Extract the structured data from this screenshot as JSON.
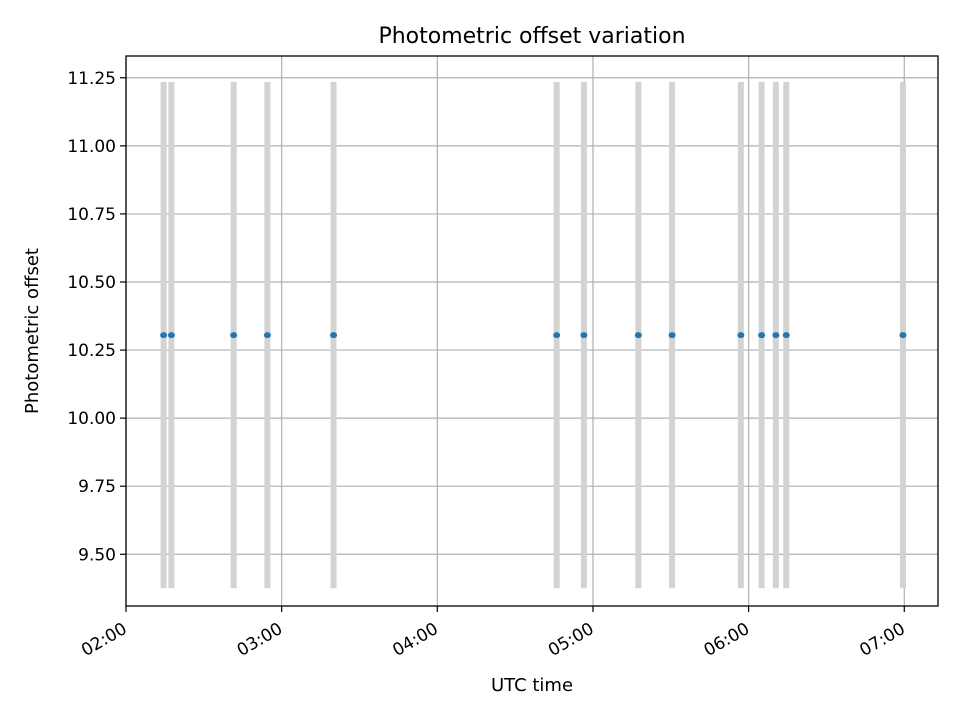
{
  "chart_data": {
    "type": "scatter",
    "title": "Photometric offset variation",
    "xlabel": "UTC time",
    "ylabel": "Photometric offset",
    "x_ticks": [
      "02:00",
      "03:00",
      "04:00",
      "05:00",
      "06:00",
      "07:00"
    ],
    "xlim": [
      "02:00",
      "07:13"
    ],
    "y_ticks": [
      9.5,
      9.75,
      10.0,
      10.25,
      10.5,
      10.75,
      11.0,
      11.25
    ],
    "y_tick_labels": [
      "9.50",
      "9.75",
      "10.00",
      "10.25",
      "10.50",
      "10.75",
      "11.00",
      "11.25"
    ],
    "ylim": [
      9.31,
      11.33
    ],
    "grid": true,
    "points": [
      {
        "x": "02:14:30",
        "y": 10.305
      },
      {
        "x": "02:17:30",
        "y": 10.305
      },
      {
        "x": "02:41:30",
        "y": 10.305
      },
      {
        "x": "02:54:30",
        "y": 10.305
      },
      {
        "x": "03:20:00",
        "y": 10.305
      },
      {
        "x": "04:46:00",
        "y": 10.305
      },
      {
        "x": "04:56:30",
        "y": 10.305
      },
      {
        "x": "05:17:30",
        "y": 10.305
      },
      {
        "x": "05:30:30",
        "y": 10.305
      },
      {
        "x": "05:57:00",
        "y": 10.305
      },
      {
        "x": "06:05:00",
        "y": 10.305
      },
      {
        "x": "06:10:30",
        "y": 10.305
      },
      {
        "x": "06:14:30",
        "y": 10.305
      },
      {
        "x": "06:59:30",
        "y": 10.305
      }
    ],
    "vertical_bands": [
      {
        "x": "02:14:30",
        "y_range": [
          9.375,
          11.235
        ]
      },
      {
        "x": "02:17:30",
        "y_range": [
          9.375,
          11.235
        ]
      },
      {
        "x": "02:41:30",
        "y_range": [
          9.375,
          11.235
        ]
      },
      {
        "x": "02:54:30",
        "y_range": [
          9.375,
          11.235
        ]
      },
      {
        "x": "03:20:00",
        "y_range": [
          9.375,
          11.235
        ]
      },
      {
        "x": "04:46:00",
        "y_range": [
          9.375,
          11.235
        ]
      },
      {
        "x": "04:56:30",
        "y_range": [
          9.375,
          11.235
        ]
      },
      {
        "x": "05:17:30",
        "y_range": [
          9.375,
          11.235
        ]
      },
      {
        "x": "05:30:30",
        "y_range": [
          9.375,
          11.235
        ]
      },
      {
        "x": "05:57:00",
        "y_range": [
          9.375,
          11.235
        ]
      },
      {
        "x": "06:05:00",
        "y_range": [
          9.375,
          11.235
        ]
      },
      {
        "x": "06:10:30",
        "y_range": [
          9.375,
          11.235
        ]
      },
      {
        "x": "06:14:30",
        "y_range": [
          9.375,
          11.235
        ]
      },
      {
        "x": "06:59:30",
        "y_range": [
          9.375,
          11.235
        ]
      }
    ],
    "colors": {
      "points": "#1f77b4",
      "bands": "#d3d3d3",
      "grid": "#b0b0b0",
      "axes": "#000000"
    }
  }
}
